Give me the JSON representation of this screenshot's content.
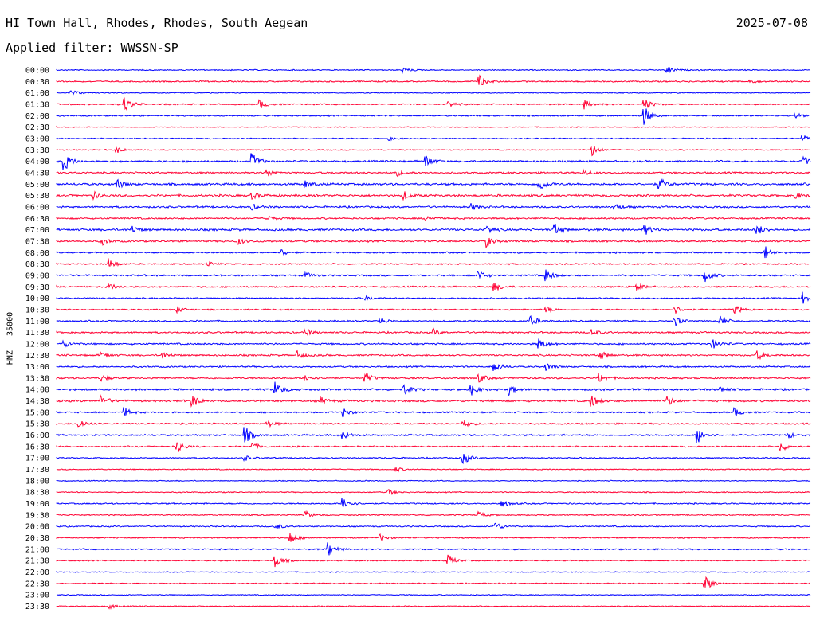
{
  "header": {
    "station": "HI Town Hall, Rhodes, Rhodes, South Aegean",
    "date": "2025-07-08",
    "filter": "Applied filter: WWSSN-SP"
  },
  "chart_data": {
    "type": "line",
    "title": "HI Town Hall, Rhodes, Rhodes, South Aegean",
    "ylabel": "HNZ - 35000",
    "rows": [
      "00:00",
      "00:30",
      "01:00",
      "01:30",
      "02:00",
      "02:30",
      "03:00",
      "03:30",
      "04:00",
      "04:30",
      "05:00",
      "05:30",
      "06:00",
      "06:30",
      "07:00",
      "07:30",
      "08:00",
      "08:30",
      "09:00",
      "09:30",
      "10:00",
      "10:30",
      "11:00",
      "11:30",
      "12:00",
      "12:30",
      "13:00",
      "13:30",
      "14:00",
      "14:30",
      "15:00",
      "15:30",
      "16:00",
      "16:30",
      "17:00",
      "17:30",
      "18:00",
      "18:30",
      "19:00",
      "19:30",
      "20:00",
      "20:30",
      "21:00",
      "21:30",
      "22:00",
      "22:30",
      "23:00",
      "23:30"
    ],
    "row_minutes": 30,
    "colors": [
      "#0000ff",
      "#ff0033"
    ],
    "amplitude": [
      0.35,
      0.45,
      0.3,
      0.45,
      0.45,
      0.3,
      0.35,
      0.35,
      0.6,
      0.55,
      0.7,
      0.7,
      0.6,
      0.55,
      0.7,
      0.6,
      0.5,
      0.45,
      0.55,
      0.5,
      0.45,
      0.45,
      0.5,
      0.55,
      0.55,
      0.55,
      0.5,
      0.55,
      0.65,
      0.65,
      0.5,
      0.5,
      0.55,
      0.45,
      0.4,
      0.35,
      0.3,
      0.35,
      0.45,
      0.4,
      0.4,
      0.4,
      0.45,
      0.4,
      0.3,
      0.35,
      0.3,
      0.3
    ],
    "events": [
      [
        [
          0.46,
          0.4
        ],
        [
          0.81,
          0.6
        ]
      ],
      [
        [
          0.56,
          1.0
        ],
        [
          0.92,
          0.3
        ]
      ],
      [
        [
          0.02,
          0.5
        ]
      ],
      [
        [
          0.09,
          1.4
        ],
        [
          0.27,
          0.7
        ],
        [
          0.52,
          0.5
        ],
        [
          0.7,
          0.7
        ],
        [
          0.78,
          0.9
        ]
      ],
      [
        [
          0.78,
          1.4
        ],
        [
          0.98,
          0.4
        ]
      ],
      [],
      [
        [
          0.44,
          0.3
        ],
        [
          0.99,
          0.5
        ]
      ],
      [
        [
          0.08,
          0.5
        ],
        [
          0.71,
          1.0
        ]
      ],
      [
        [
          0.01,
          1.5
        ],
        [
          0.26,
          1.2
        ],
        [
          0.49,
          1.0
        ],
        [
          0.99,
          0.8
        ]
      ],
      [
        [
          0.28,
          0.6
        ],
        [
          0.45,
          0.6
        ],
        [
          0.7,
          0.5
        ]
      ],
      [
        [
          0.08,
          0.8
        ],
        [
          0.33,
          0.6
        ],
        [
          0.64,
          1.2
        ],
        [
          0.8,
          0.9
        ]
      ],
      [
        [
          0.05,
          0.5
        ],
        [
          0.26,
          0.5
        ],
        [
          0.46,
          0.7
        ],
        [
          0.98,
          0.5
        ]
      ],
      [
        [
          0.26,
          0.4
        ],
        [
          0.55,
          0.5
        ],
        [
          0.74,
          0.5
        ]
      ],
      [
        [
          0.28,
          0.4
        ],
        [
          0.49,
          0.4
        ]
      ],
      [
        [
          0.1,
          0.6
        ],
        [
          0.57,
          0.7
        ],
        [
          0.66,
          1.0
        ],
        [
          0.78,
          0.8
        ],
        [
          0.93,
          0.8
        ]
      ],
      [
        [
          0.06,
          0.6
        ],
        [
          0.24,
          0.6
        ],
        [
          0.57,
          0.9
        ]
      ],
      [
        [
          0.3,
          0.5
        ],
        [
          0.94,
          1.1
        ]
      ],
      [
        [
          0.07,
          0.9
        ],
        [
          0.2,
          0.4
        ]
      ],
      [
        [
          0.33,
          0.5
        ],
        [
          0.56,
          0.8
        ],
        [
          0.65,
          0.9
        ],
        [
          0.86,
          1.0
        ]
      ],
      [
        [
          0.07,
          0.6
        ],
        [
          0.58,
          0.9
        ],
        [
          0.77,
          0.6
        ]
      ],
      [
        [
          0.41,
          0.4
        ],
        [
          0.99,
          1.0
        ]
      ],
      [
        [
          0.16,
          0.5
        ],
        [
          0.65,
          0.5
        ],
        [
          0.82,
          0.6
        ],
        [
          0.9,
          0.7
        ]
      ],
      [
        [
          0.43,
          0.5
        ],
        [
          0.63,
          0.7
        ],
        [
          0.82,
          0.8
        ],
        [
          0.88,
          0.9
        ]
      ],
      [
        [
          0.33,
          0.6
        ],
        [
          0.5,
          0.5
        ],
        [
          0.71,
          0.5
        ]
      ],
      [
        [
          0.01,
          0.5
        ],
        [
          0.64,
          0.9
        ],
        [
          0.87,
          0.8
        ]
      ],
      [
        [
          0.06,
          0.5
        ],
        [
          0.14,
          0.6
        ],
        [
          0.32,
          0.6
        ],
        [
          0.72,
          0.8
        ],
        [
          0.93,
          0.7
        ]
      ],
      [
        [
          0.58,
          0.9
        ],
        [
          0.65,
          0.6
        ]
      ],
      [
        [
          0.06,
          0.5
        ],
        [
          0.33,
          0.6
        ],
        [
          0.41,
          0.8
        ],
        [
          0.56,
          0.7
        ],
        [
          0.72,
          0.8
        ]
      ],
      [
        [
          0.29,
          1.2
        ],
        [
          0.46,
          0.9
        ],
        [
          0.55,
          0.9
        ],
        [
          0.6,
          0.8
        ],
        [
          0.88,
          0.5
        ]
      ],
      [
        [
          0.06,
          0.8
        ],
        [
          0.18,
          1.0
        ],
        [
          0.35,
          0.6
        ],
        [
          0.71,
          0.9
        ],
        [
          0.81,
          0.8
        ]
      ],
      [
        [
          0.09,
          0.7
        ],
        [
          0.38,
          0.8
        ],
        [
          0.9,
          0.7
        ]
      ],
      [
        [
          0.03,
          0.8
        ],
        [
          0.28,
          0.5
        ],
        [
          0.54,
          0.6
        ]
      ],
      [
        [
          0.25,
          1.4
        ],
        [
          0.38,
          0.8
        ],
        [
          0.85,
          1.4
        ],
        [
          0.97,
          0.5
        ]
      ],
      [
        [
          0.16,
          1.0
        ],
        [
          0.26,
          0.6
        ],
        [
          0.96,
          0.9
        ]
      ],
      [
        [
          0.25,
          0.4
        ],
        [
          0.54,
          0.9
        ]
      ],
      [
        [
          0.45,
          0.4
        ]
      ],
      [],
      [
        [
          0.44,
          0.5
        ]
      ],
      [
        [
          0.38,
          1.2
        ],
        [
          0.59,
          0.6
        ]
      ],
      [
        [
          0.33,
          0.6
        ],
        [
          0.56,
          0.5
        ]
      ],
      [
        [
          0.29,
          0.6
        ],
        [
          0.58,
          0.9
        ]
      ],
      [
        [
          0.31,
          0.9
        ],
        [
          0.43,
          0.5
        ]
      ],
      [
        [
          0.36,
          1.2
        ]
      ],
      [
        [
          0.29,
          1.1
        ],
        [
          0.52,
          0.9
        ]
      ],
      [],
      [
        [
          0.86,
          1.3
        ]
      ],
      [],
      [
        [
          0.07,
          0.4
        ]
      ]
    ]
  }
}
